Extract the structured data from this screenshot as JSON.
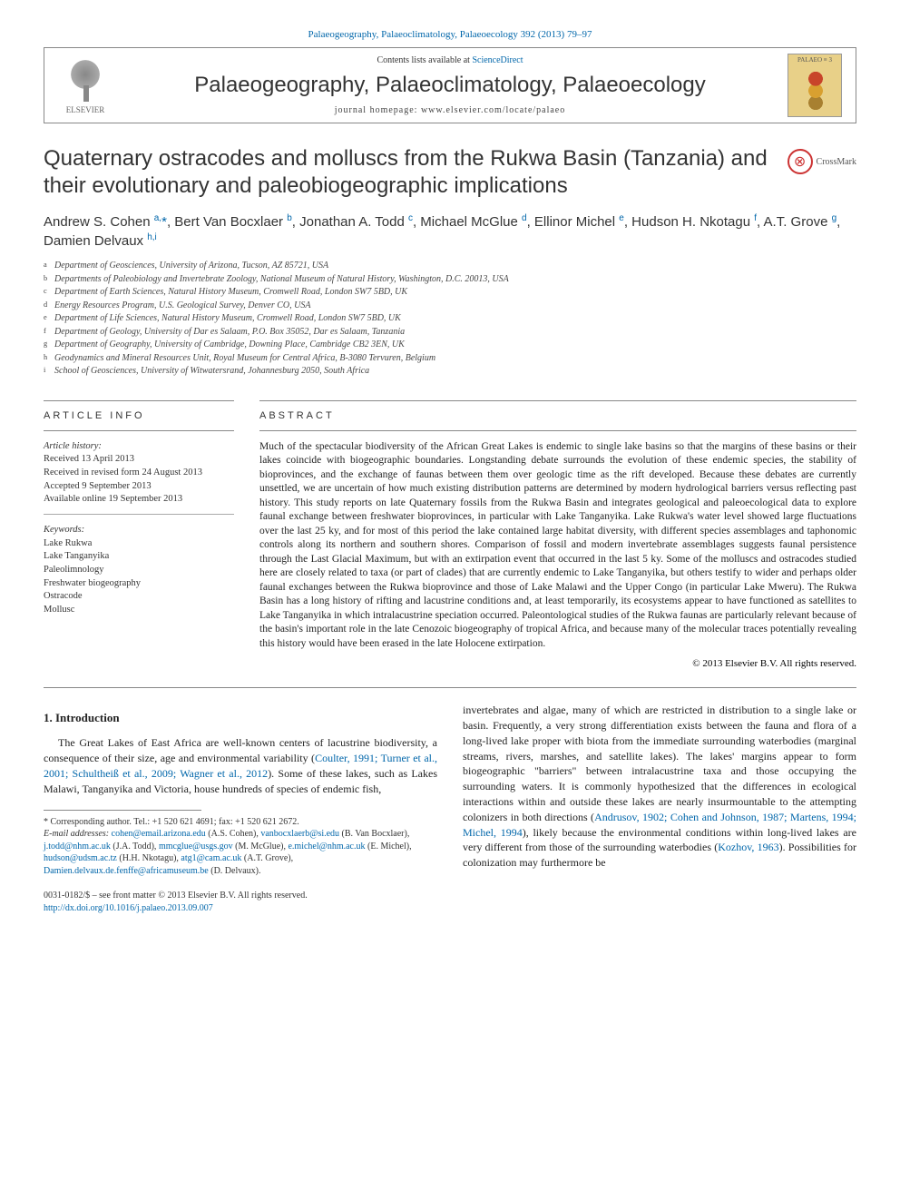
{
  "header": {
    "citation": "Palaeogeography, Palaeoclimatology, Palaeoecology 392 (2013) 79–97",
    "contents_prefix": "Contents lists available at ",
    "contents_link": "ScienceDirect",
    "journal_name": "Palaeogeography, Palaeoclimatology, Palaeoecology",
    "homepage_label": "journal homepage: ",
    "homepage_url": "www.elsevier.com/locate/palaeo",
    "publisher": "ELSEVIER",
    "cover_label": "PALAEO ≡ 3"
  },
  "crossmark": "CrossMark",
  "title": "Quaternary ostracodes and molluscs from the Rukwa Basin (Tanzania) and their evolutionary and paleobiogeographic implications",
  "authors_html": "Andrew S. Cohen <a><sup>a,</sup></a><span class=\"star\">*</span>, Bert Van Bocxlaer <a><sup>b</sup></a>, Jonathan A. Todd <a><sup>c</sup></a>, Michael McGlue <a><sup>d</sup></a>, Ellinor Michel <a><sup>e</sup></a>, Hudson H. Nkotagu <a><sup>f</sup></a>, A.T. Grove <a><sup>g</sup></a>, Damien Delvaux <a><sup>h,i</sup></a>",
  "affiliations": [
    {
      "k": "a",
      "t": "Department of Geosciences, University of Arizona, Tucson, AZ 85721, USA"
    },
    {
      "k": "b",
      "t": "Departments of Paleobiology and Invertebrate Zoology, National Museum of Natural History, Washington, D.C. 20013, USA"
    },
    {
      "k": "c",
      "t": "Department of Earth Sciences, Natural History Museum, Cromwell Road, London SW7 5BD, UK"
    },
    {
      "k": "d",
      "t": "Energy Resources Program, U.S. Geological Survey, Denver CO, USA"
    },
    {
      "k": "e",
      "t": "Department of Life Sciences, Natural History Museum, Cromwell Road, London SW7 5BD, UK"
    },
    {
      "k": "f",
      "t": "Department of Geology, University of Dar es Salaam, P.O. Box 35052, Dar es Salaam, Tanzania"
    },
    {
      "k": "g",
      "t": "Department of Geography, University of Cambridge, Downing Place, Cambridge CB2 3EN, UK"
    },
    {
      "k": "h",
      "t": "Geodynamics and Mineral Resources Unit, Royal Museum for Central Africa, B-3080 Tervuren, Belgium"
    },
    {
      "k": "i",
      "t": "School of Geosciences, University of Witwatersrand, Johannesburg 2050, South Africa"
    }
  ],
  "article_info": {
    "label": "article info",
    "history_hdr": "Article history:",
    "history": [
      "Received 13 April 2013",
      "Received in revised form 24 August 2013",
      "Accepted 9 September 2013",
      "Available online 19 September 2013"
    ],
    "keywords_hdr": "Keywords:",
    "keywords": [
      "Lake Rukwa",
      "Lake Tanganyika",
      "Paleolimnology",
      "Freshwater biogeography",
      "Ostracode",
      "Mollusc"
    ]
  },
  "abstract": {
    "label": "abstract",
    "text": "Much of the spectacular biodiversity of the African Great Lakes is endemic to single lake basins so that the margins of these basins or their lakes coincide with biogeographic boundaries. Longstanding debate surrounds the evolution of these endemic species, the stability of bioprovinces, and the exchange of faunas between them over geologic time as the rift developed. Because these debates are currently unsettled, we are uncertain of how much existing distribution patterns are determined by modern hydrological barriers versus reflecting past history. This study reports on late Quaternary fossils from the Rukwa Basin and integrates geological and paleoecological data to explore faunal exchange between freshwater bioprovinces, in particular with Lake Tanganyika. Lake Rukwa's water level showed large fluctuations over the last 25 ky, and for most of this period the lake contained large habitat diversity, with different species assemblages and taphonomic controls along its northern and southern shores. Comparison of fossil and modern invertebrate assemblages suggests faunal persistence through the Last Glacial Maximum, but with an extirpation event that occurred in the last 5 ky. Some of the molluscs and ostracodes studied here are closely related to taxa (or part of clades) that are currently endemic to Lake Tanganyika, but others testify to wider and perhaps older faunal exchanges between the Rukwa bioprovince and those of Lake Malawi and the Upper Congo (in particular Lake Mweru). The Rukwa Basin has a long history of rifting and lacustrine conditions and, at least temporarily, its ecosystems appear to have functioned as satellites to Lake Tanganyika in which intralacustrine speciation occurred. Paleontological studies of the Rukwa faunas are particularly relevant because of the basin's important role in the late Cenozoic biogeography of tropical Africa, and because many of the molecular traces potentially revealing this history would have been erased in the late Holocene extirpation.",
    "copyright": "© 2013 Elsevier B.V. All rights reserved."
  },
  "body": {
    "section_heading": "1. Introduction",
    "para1_a": "The Great Lakes of East Africa are well-known centers of lacustrine biodiversity, a consequence of their size, age and environmental variability (",
    "para1_link": "Coulter, 1991; Turner et al., 2001; Schultheiß et al., 2009; Wagner et al., 2012",
    "para1_b": "). Some of these lakes, such as Lakes Malawi, Tanganyika and Victoria, house hundreds of species of endemic fish,",
    "para2_a": "invertebrates and algae, many of which are restricted in distribution to a single lake or basin. Frequently, a very strong differentiation exists between the fauna and flora of a long-lived lake proper with biota from the immediate surrounding waterbodies (marginal streams, rivers, marshes, and satellite lakes). The lakes' margins appear to form biogeographic \"barriers\" between intralacustrine taxa and those occupying the surrounding waters. It is commonly hypothesized that the differences in ecological interactions within and outside these lakes are nearly insurmountable to the attempting colonizers in both directions (",
    "para2_link1": "Andrusov, 1902; Cohen and Johnson, 1987; Martens, 1994; Michel, 1994",
    "para2_b": "), likely because the environmental conditions within long-lived lakes are very different from those of the surrounding waterbodies (",
    "para2_link2": "Kozhov, 1963",
    "para2_c": "). Possibilities for colonization may furthermore be"
  },
  "footnotes": {
    "corr": "Corresponding author. Tel.: +1 520 621 4691; fax: +1 520 621 2672.",
    "email_label": "E-mail addresses:",
    "emails": [
      {
        "addr": "cohen@email.arizona.edu",
        "who": "(A.S. Cohen)"
      },
      {
        "addr": "vanbocxlaerb@si.edu",
        "who": "(B. Van Bocxlaer)"
      },
      {
        "addr": "j.todd@nhm.ac.uk",
        "who": "(J.A. Todd)"
      },
      {
        "addr": "mmcglue@usgs.gov",
        "who": "(M. McGlue)"
      },
      {
        "addr": "e.michel@nhm.ac.uk",
        "who": "(E. Michel)"
      },
      {
        "addr": "hudson@udsm.ac.tz",
        "who": "(H.H. Nkotagu)"
      },
      {
        "addr": "atg1@cam.ac.uk",
        "who": "(A.T. Grove)"
      },
      {
        "addr": "Damien.delvaux.de.fenffe@africamuseum.be",
        "who": "(D. Delvaux)"
      }
    ]
  },
  "footer": {
    "line1": "0031-0182/$ – see front matter © 2013 Elsevier B.V. All rights reserved.",
    "doi": "http://dx.doi.org/10.1016/j.palaeo.2013.09.007"
  },
  "colors": {
    "link": "#0066aa",
    "text": "#222222",
    "rule": "#888888"
  }
}
